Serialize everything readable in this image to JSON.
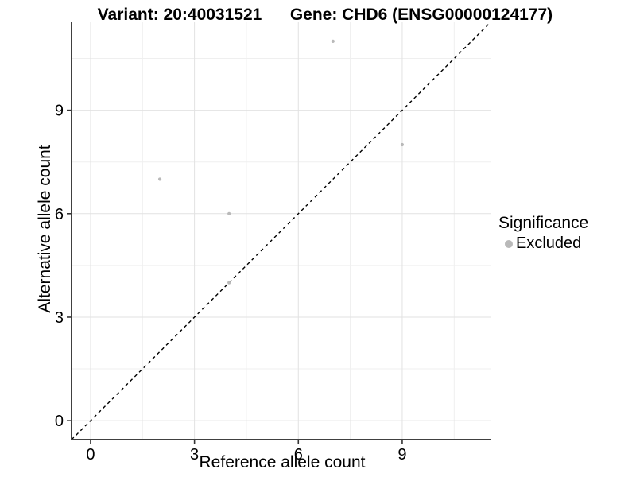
{
  "chart_data": {
    "type": "scatter",
    "titles": {
      "left": "Variant: 20:40031521",
      "right": "Gene: CHD6 (ENSG00000124177)"
    },
    "xlabel": "Reference allele count",
    "ylabel": "Alternative allele count",
    "xlim": [
      -0.55,
      11.55
    ],
    "ylim": [
      -0.55,
      11.55
    ],
    "x_ticks": [
      0,
      3,
      6,
      9
    ],
    "y_ticks": [
      0,
      3,
      6,
      9
    ],
    "x_minor_ticks": [
      1.5,
      4.5,
      7.5,
      10.5
    ],
    "y_minor_ticks": [
      1.5,
      4.5,
      7.5,
      10.5
    ],
    "grid": "major and minor gridlines on white background",
    "series": [
      {
        "name": "Excluded",
        "color": "#b9b9b9",
        "points": [
          [
            2,
            7
          ],
          [
            4,
            6
          ],
          [
            4,
            4
          ],
          [
            7,
            11
          ],
          [
            9,
            8
          ]
        ]
      }
    ],
    "reference_line": {
      "type": "identity",
      "style": "dashed",
      "color": "#000000"
    },
    "legend": {
      "position": "right",
      "title": "Significance",
      "items": [
        {
          "label": "Excluded",
          "color": "#b9b9b9"
        }
      ]
    }
  },
  "colors": {
    "background": "#ffffff",
    "axis_line": "#404040",
    "tick_mark": "#333333",
    "tick_text": "#000000",
    "grid_major": "#e2e2e2",
    "grid_minor": "#efefef",
    "point": "#b9b9b9",
    "reference_line": "#000000"
  }
}
